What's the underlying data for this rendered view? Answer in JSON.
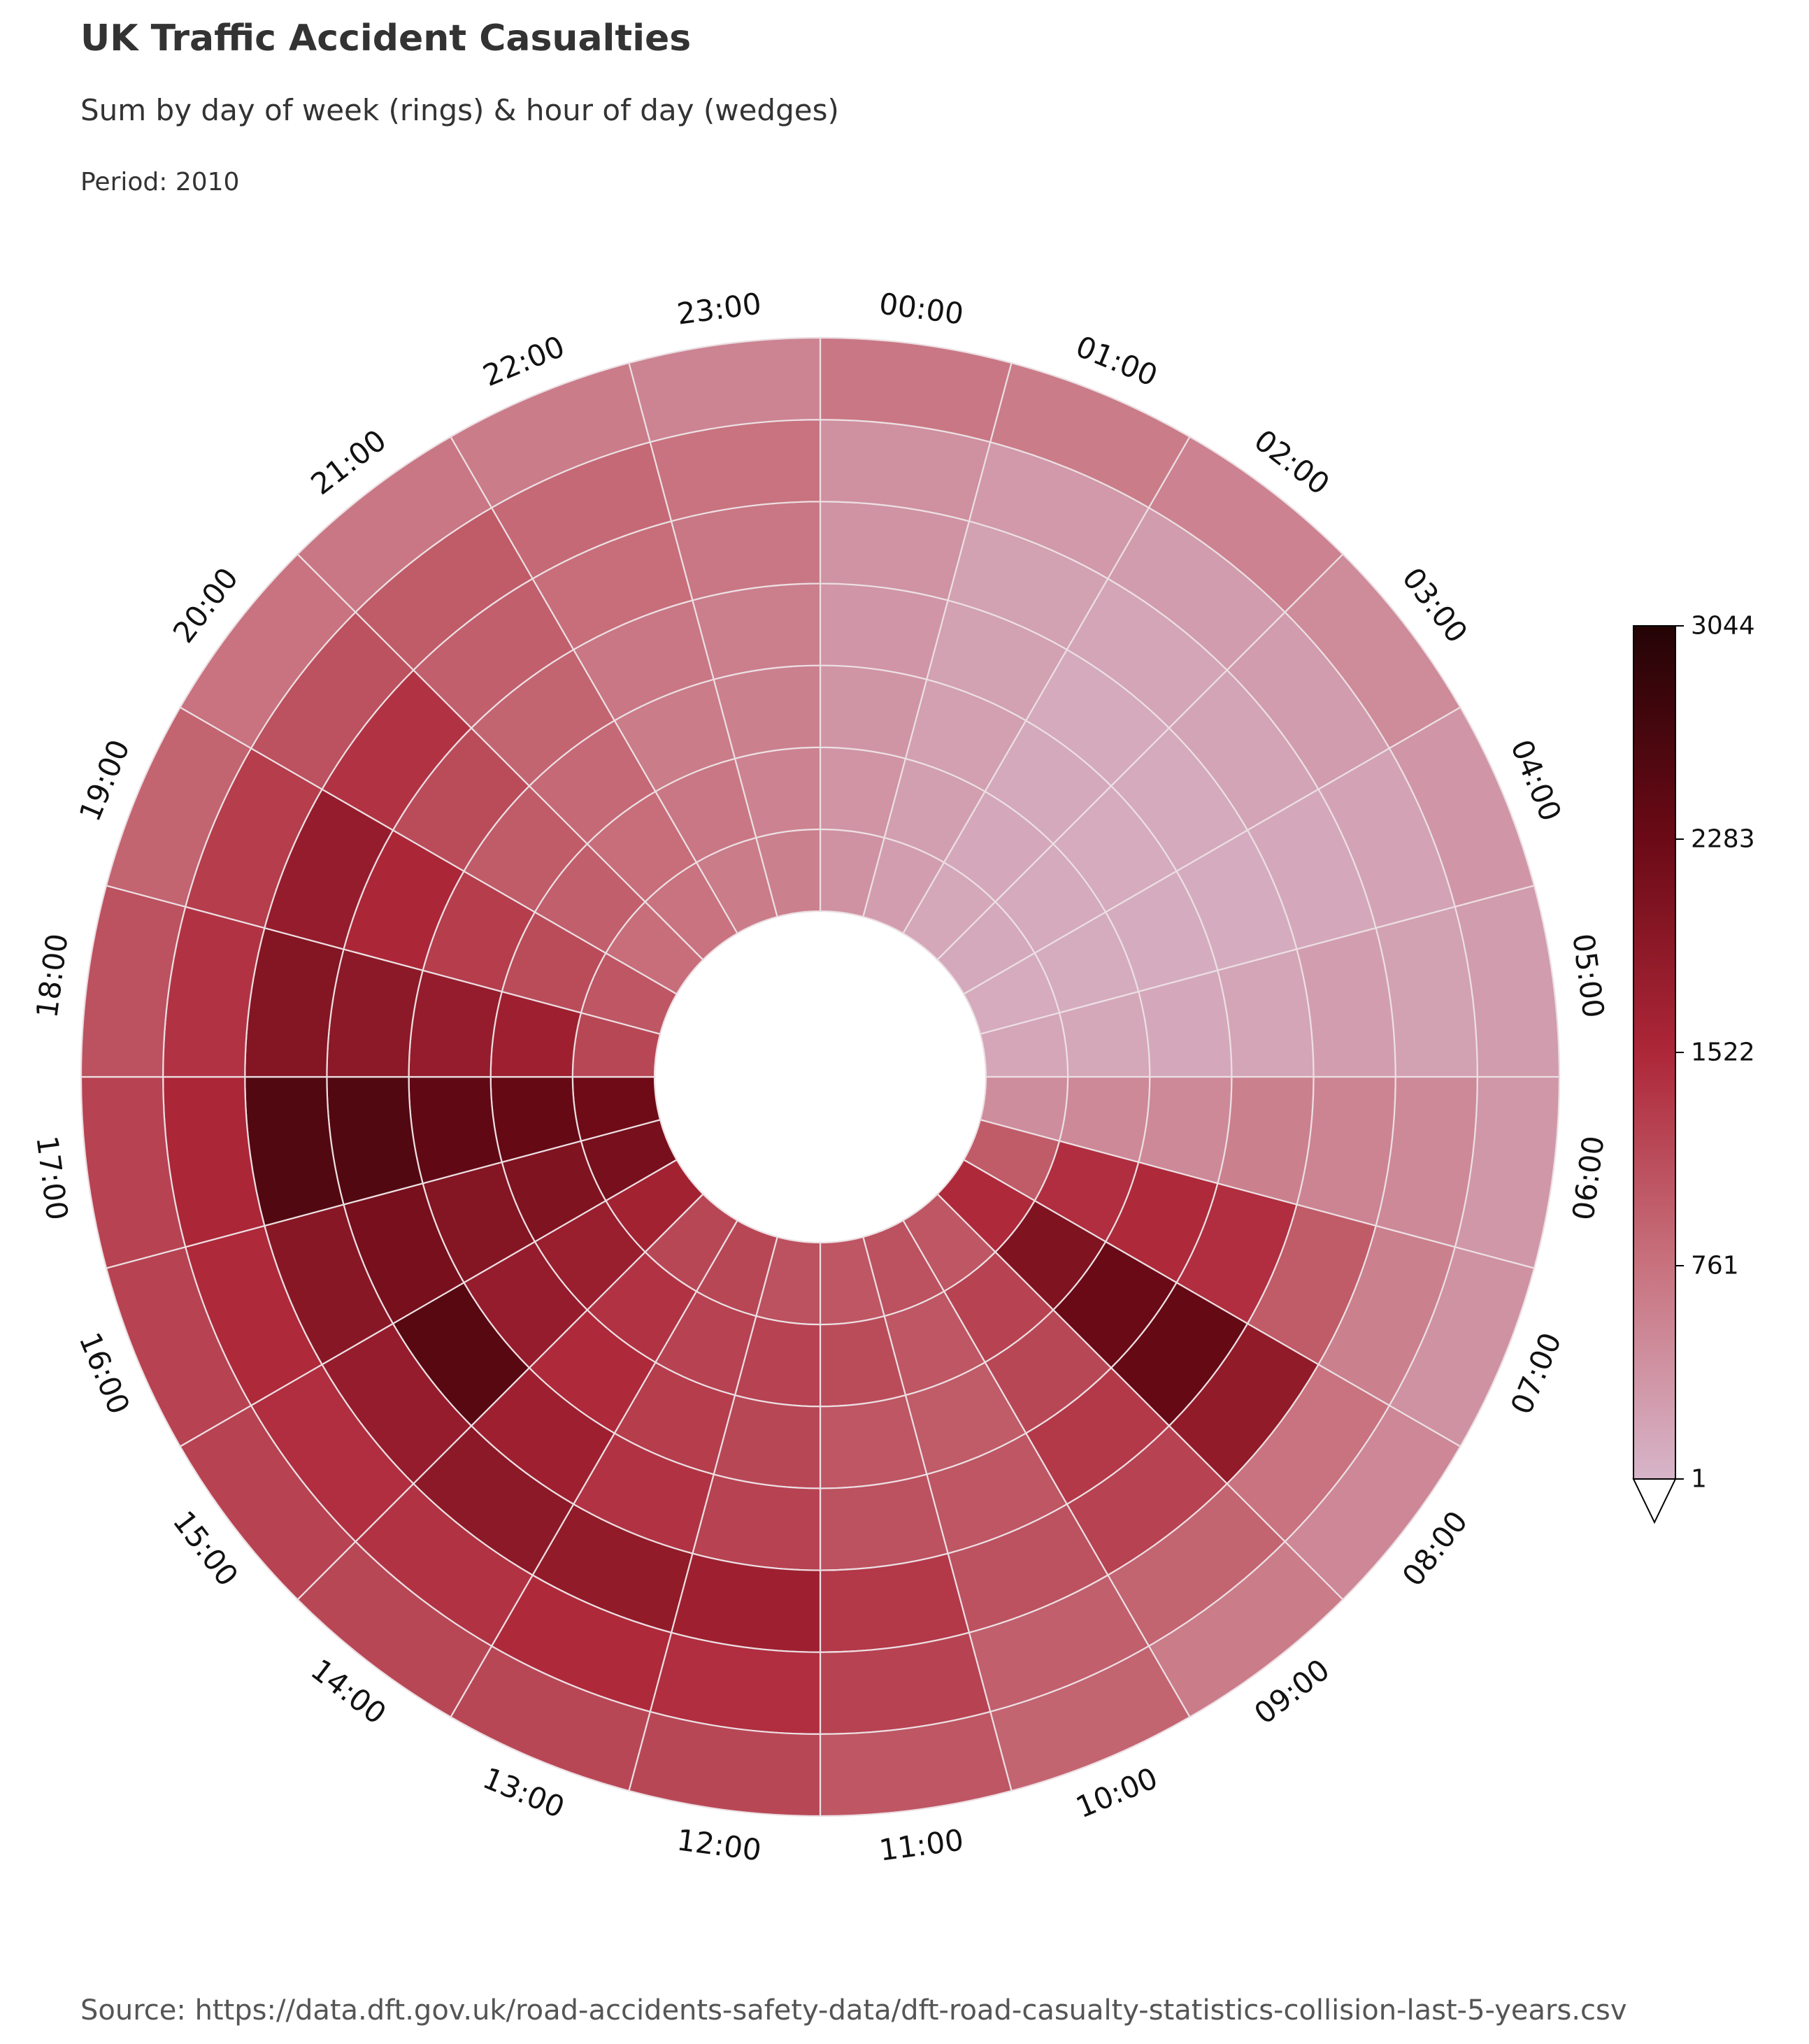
{
  "chart_data": {
    "type": "heatmap",
    "subtype": "radial",
    "title": "UK Traffic Accident Casualties",
    "subtitle": "Sum by day of week (rings) & hour of day (wedges)",
    "period": "Period: 2010",
    "source": "Source: https://data.dft.gov.uk/road-accidents-safety-data/dft-road-casualty-statistics-collision-last-5-years.csv",
    "hours": [
      "00:00",
      "01:00",
      "02:00",
      "03:00",
      "04:00",
      "05:00",
      "06:00",
      "07:00",
      "08:00",
      "09:00",
      "10:00",
      "11:00",
      "12:00",
      "13:00",
      "14:00",
      "15:00",
      "16:00",
      "17:00",
      "18:00",
      "19:00",
      "20:00",
      "21:00",
      "22:00",
      "23:00"
    ],
    "ring_order": "inner to outer, 7 rings (day of week; ring labels not shown)",
    "values": [
      [
        400,
        260,
        160,
        140,
        120,
        170,
        460,
        1000,
        1500,
        1050,
        1100,
        1050,
        1100,
        1200,
        1200,
        1650,
        2150,
        2250,
        1200,
        1050,
        800,
        750,
        650,
        600
      ],
      [
        380,
        250,
        150,
        130,
        110,
        160,
        500,
        1450,
        2050,
        1250,
        1050,
        1150,
        1250,
        1250,
        1400,
        1750,
        2050,
        2350,
        1700,
        1150,
        950,
        800,
        700,
        580
      ],
      [
        370,
        240,
        140,
        120,
        100,
        150,
        500,
        1500,
        2300,
        1200,
        1000,
        1050,
        1200,
        1300,
        1500,
        1800,
        2000,
        2400,
        1800,
        1300,
        1000,
        850,
        650,
        600
      ],
      [
        360,
        230,
        130,
        130,
        100,
        180,
        600,
        1450,
        2350,
        1350,
        1050,
        1100,
        1250,
        1400,
        1700,
        2500,
        2150,
        2550,
        1900,
        1550,
        1150,
        900,
        700,
        620
      ],
      [
        390,
        230,
        180,
        190,
        150,
        260,
        560,
        1000,
        1850,
        1250,
        1100,
        1350,
        1700,
        1850,
        1900,
        1800,
        1950,
        2550,
        2000,
        1800,
        1400,
        950,
        800,
        700
      ],
      [
        420,
        320,
        280,
        290,
        200,
        230,
        500,
        600,
        750,
        900,
        950,
        1250,
        1450,
        1500,
        1400,
        1450,
        1500,
        1550,
        1400,
        1300,
        1100,
        1000,
        850,
        750
      ],
      [
        700,
        650,
        580,
        480,
        350,
        280,
        340,
        400,
        520,
        650,
        900,
        1050,
        1200,
        1200,
        1200,
        1250,
        1250,
        1250,
        1100,
        900,
        750,
        700,
        650,
        560
      ]
    ],
    "colorbar": {
      "min": 1,
      "max": 3044,
      "ticks": [
        "1",
        "761",
        "1522",
        "2283",
        "3044"
      ],
      "extend": "min",
      "colors": [
        "#d7b5c9",
        "#c8727e",
        "#ad2738",
        "#6b0a16",
        "#240406"
      ]
    },
    "grid": "light gridlines between cells",
    "legend": "colorbar at right"
  }
}
